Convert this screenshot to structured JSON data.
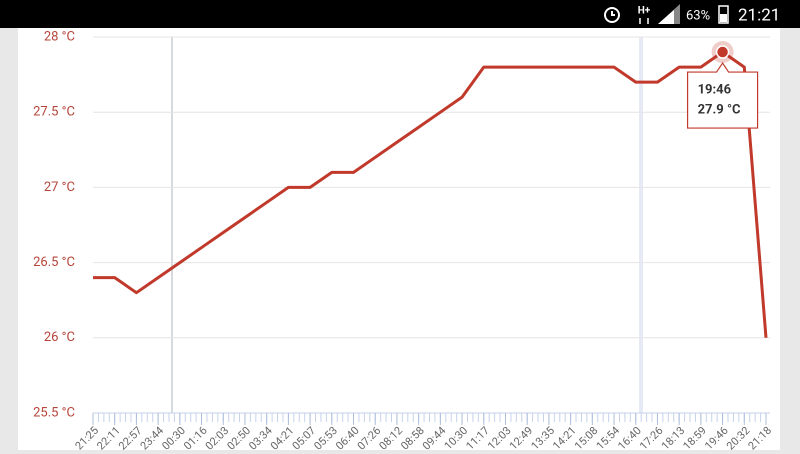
{
  "status_bar": {
    "network": "H+",
    "battery": "63%",
    "time": "21:21"
  },
  "chart_data": {
    "type": "line",
    "categories": [
      "21:25",
      "22:11",
      "22:57",
      "23:44",
      "00:30",
      "01:16",
      "02:03",
      "02:50",
      "03:34",
      "04:21",
      "05:07",
      "05:53",
      "06:40",
      "07:26",
      "08:12",
      "08:58",
      "09:44",
      "10:30",
      "11:17",
      "12:03",
      "12:49",
      "13:35",
      "14:21",
      "15:08",
      "15:54",
      "16:40",
      "17:26",
      "18:13",
      "18:59",
      "19:46",
      "20:32",
      "21:18"
    ],
    "values": [
      26.4,
      26.4,
      26.3,
      26.4,
      26.5,
      26.6,
      26.7,
      26.8,
      26.9,
      27.0,
      27.0,
      27.1,
      27.1,
      27.2,
      27.3,
      27.4,
      27.5,
      27.6,
      27.8,
      27.8,
      27.8,
      27.8,
      27.8,
      27.8,
      27.8,
      27.7,
      27.7,
      27.8,
      27.8,
      27.9,
      27.8,
      26.0
    ],
    "value_labels": [
      null,
      null,
      null,
      null,
      null,
      null,
      null,
      null,
      null,
      null,
      null,
      null,
      null,
      null,
      null,
      null,
      null,
      null,
      null,
      null,
      null,
      null,
      null,
      null,
      null,
      null,
      null,
      null,
      null,
      "27.9 °C",
      null,
      null
    ],
    "color": "#c0392b",
    "ylim": [
      25.5,
      28
    ],
    "yticks": [
      {
        "value": 25.5,
        "label": "25.5 °C"
      },
      {
        "value": 26,
        "label": "26 °C"
      },
      {
        "value": 26.5,
        "label": "26.5 °C"
      },
      {
        "value": 27,
        "label": "27 °C"
      },
      {
        "value": 27.5,
        "label": "27.5 °C"
      },
      {
        "value": 28,
        "label": "28 °C"
      }
    ],
    "grid": true
  }
}
